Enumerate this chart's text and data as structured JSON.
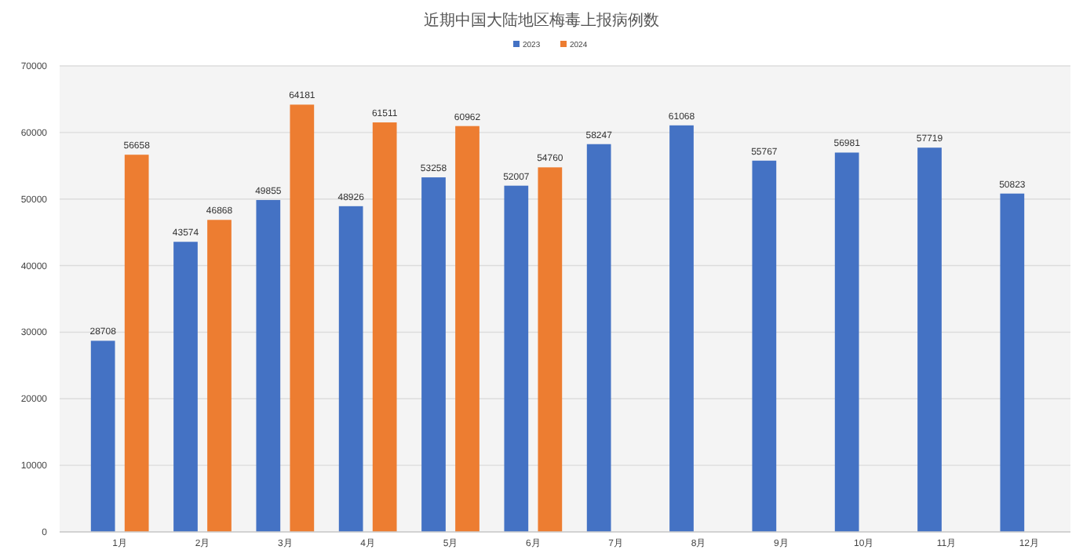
{
  "chart_data": {
    "type": "bar",
    "title": "近期中国大陆地区梅毒上报病例数",
    "categories": [
      "1月",
      "2月",
      "3月",
      "4月",
      "5月",
      "6月",
      "7月",
      "8月",
      "9月",
      "10月",
      "11月",
      "12月"
    ],
    "series": [
      {
        "name": "2023",
        "color": "#4472c4",
        "values": [
          28708,
          43574,
          49855,
          48926,
          53258,
          52007,
          58247,
          61068,
          55767,
          56981,
          57719,
          50823
        ]
      },
      {
        "name": "2024",
        "color": "#ed7d31",
        "values": [
          56658,
          46868,
          64181,
          61511,
          60962,
          54760,
          null,
          null,
          null,
          null,
          null,
          null
        ]
      }
    ],
    "ylim": [
      0,
      70000
    ],
    "yticks": [
      0,
      10000,
      20000,
      30000,
      40000,
      50000,
      60000,
      70000
    ],
    "grid": "y",
    "legend": "top",
    "data_labels": true
  }
}
